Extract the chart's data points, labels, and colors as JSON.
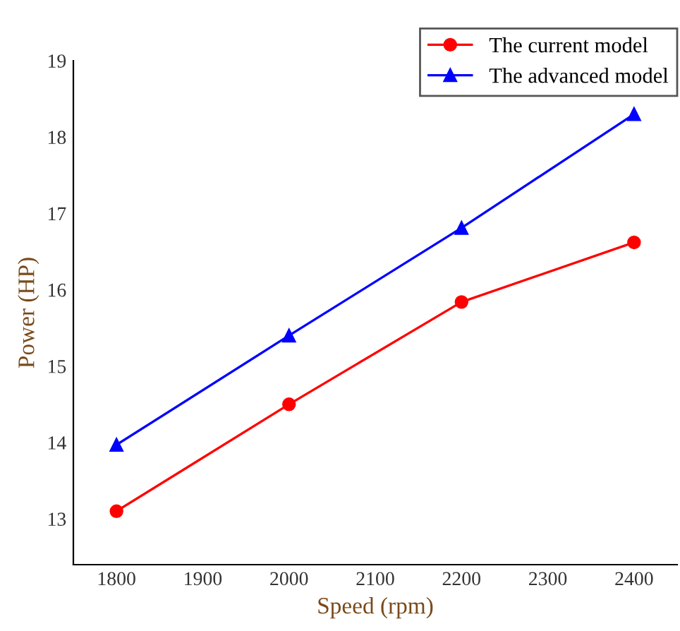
{
  "chart_data": {
    "type": "line",
    "xlabel": "Speed (rpm)",
    "ylabel": "Power (HP)",
    "x": [
      1800,
      2000,
      2200,
      2400
    ],
    "series": [
      {
        "name": "The current model",
        "color": "#ff0000",
        "marker": "circle",
        "values": [
          13.1,
          14.5,
          15.84,
          16.62
        ]
      },
      {
        "name": "The advanced model",
        "color": "#0000ff",
        "marker": "triangle",
        "values": [
          13.97,
          15.4,
          16.81,
          18.3
        ]
      }
    ],
    "xlim": [
      1750,
      2450
    ],
    "xticks": [
      1800,
      1900,
      2000,
      2100,
      2200,
      2300,
      2400
    ],
    "ylim": [
      12.4,
      19
    ],
    "yticks": [
      13,
      14,
      15,
      16,
      17,
      18,
      19
    ],
    "grid": false,
    "legend": "top right",
    "line_style": "solid"
  }
}
